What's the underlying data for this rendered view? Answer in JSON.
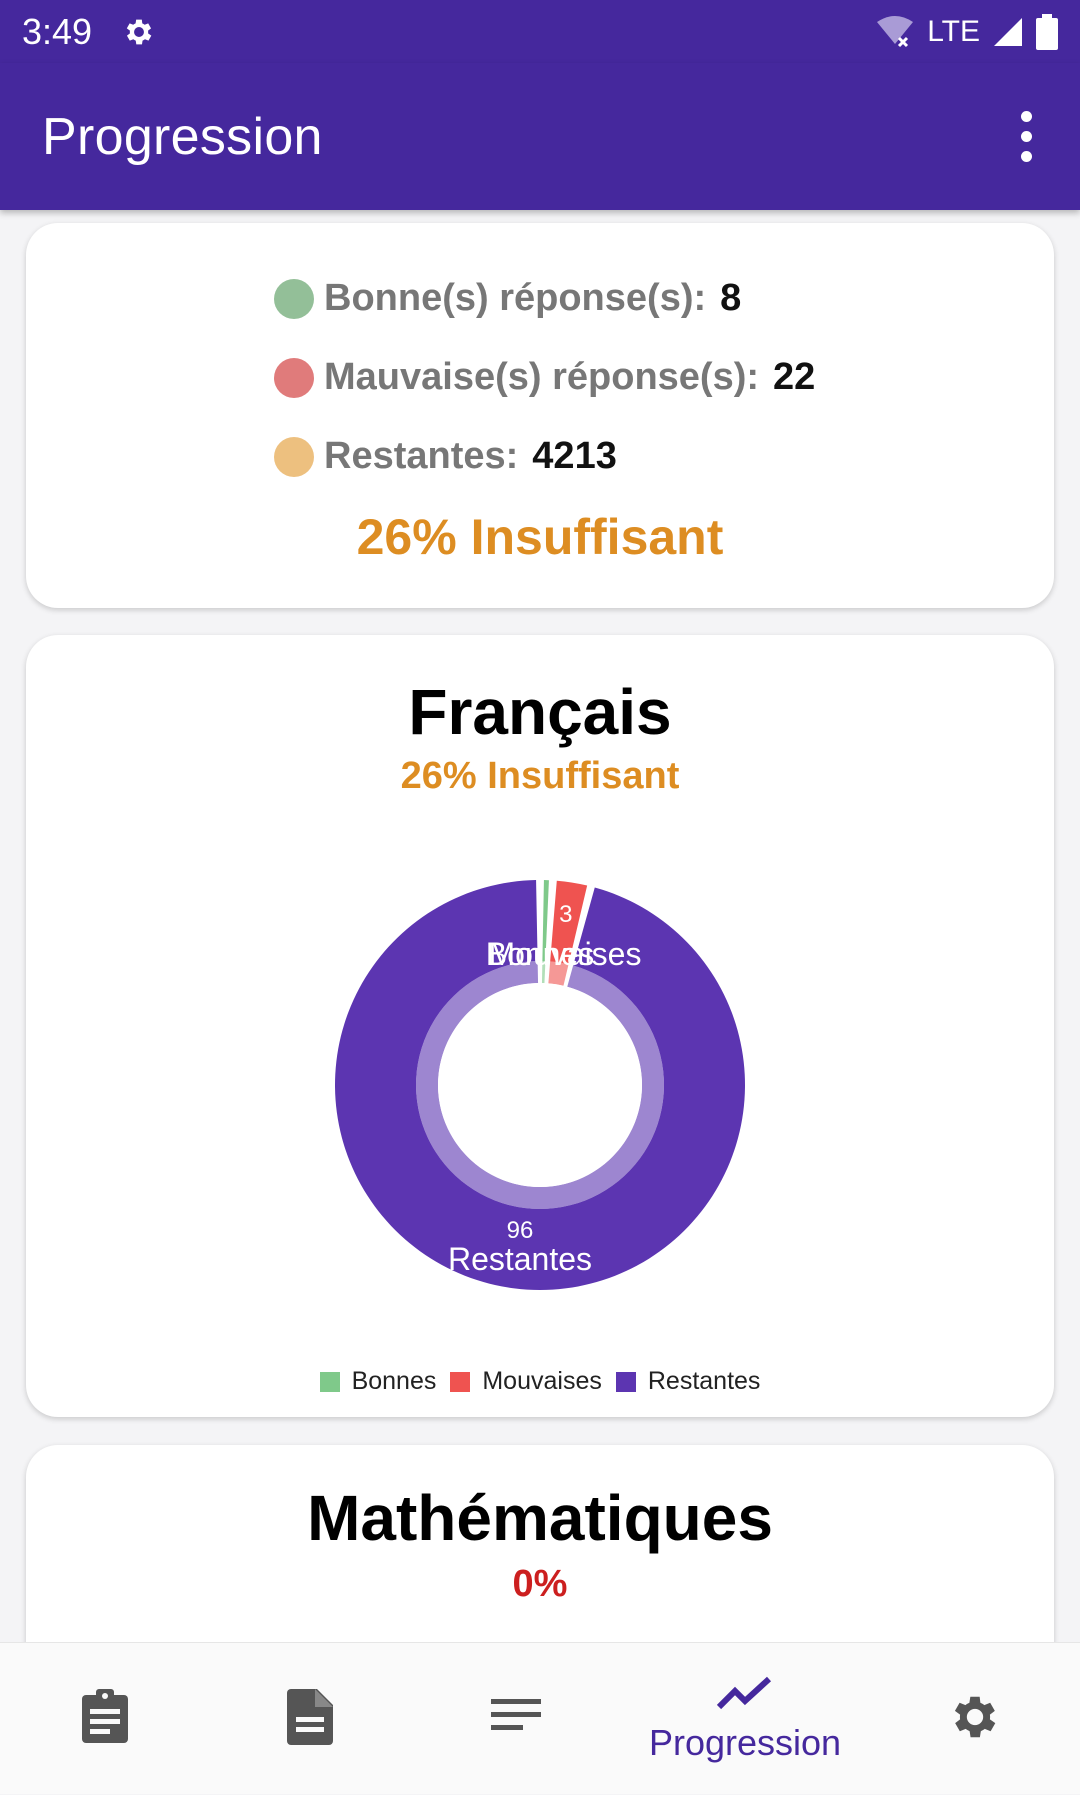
{
  "status_bar": {
    "time": "3:49",
    "settings_icon": "gear-icon",
    "network": "LTE",
    "icons": [
      "wifi-off-icon",
      "signal-icon",
      "battery-icon"
    ]
  },
  "app_bar": {
    "title": "Progression",
    "menu_icon": "more-vert-icon"
  },
  "summary_card": {
    "rows": [
      {
        "label": "Bonne(s) réponse(s):",
        "value": "8",
        "color": "#93bf98"
      },
      {
        "label": "Mauvaise(s) réponse(s):",
        "value": "22",
        "color": "#e07b7b"
      },
      {
        "label": "Restantes:",
        "value": "4213",
        "color": "#edc07f"
      }
    ],
    "score_text": "26% Insuffisant",
    "score_color": "#dd8d22"
  },
  "subjects": [
    {
      "title": "Français",
      "score_text": "26% Insuffisant",
      "score_color": "#dd8d22",
      "chart_data": {
        "type": "pie",
        "categories": [
          "Bonnes",
          "Mouvaises",
          "Restantes"
        ],
        "values": [
          1,
          3,
          96
        ],
        "data_labels": [
          "",
          "3",
          "96"
        ],
        "slice_labels": [
          "Bonnes",
          "Mouvaises",
          "Restantes"
        ],
        "colors": [
          "#7fc98a",
          "#ef5350",
          "#5c35b1"
        ],
        "legend_position": "bottom"
      },
      "legend": [
        {
          "label": "Bonnes",
          "color": "#7fc98a"
        },
        {
          "label": "Mouvaises",
          "color": "#ef5350"
        },
        {
          "label": "Restantes",
          "color": "#5c35b1"
        }
      ]
    },
    {
      "title": "Mathématiques",
      "score_text": "0%",
      "score_color": "#cc1f1f"
    }
  ],
  "bottom_nav": {
    "items": [
      {
        "icon": "assignment-icon",
        "label": ""
      },
      {
        "icon": "document-icon",
        "label": ""
      },
      {
        "icon": "list-icon",
        "label": ""
      },
      {
        "icon": "trending-icon",
        "label": "Progression",
        "active": true
      },
      {
        "icon": "settings-icon",
        "label": ""
      }
    ],
    "active_color": "#45289d",
    "inactive_color": "#555555"
  }
}
